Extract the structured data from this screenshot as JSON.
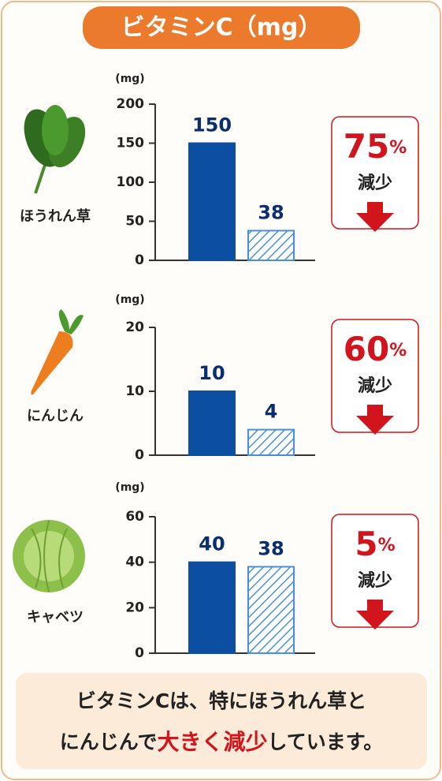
{
  "header": {
    "title": "ビタミンC（mg）"
  },
  "chart_data": [
    {
      "type": "bar",
      "name": "ほうれん草",
      "y_unit": "(mg)",
      "categories": [
        null,
        null
      ],
      "values": [
        150,
        38
      ],
      "colors": [
        "#0b4ea2",
        "#4a90d9"
      ],
      "hatched": [
        false,
        true
      ],
      "ylim": [
        0,
        200
      ],
      "yticks": [
        0,
        50,
        100,
        150,
        200
      ],
      "badge": {
        "value": 75,
        "unit": "%",
        "label": "減少"
      }
    },
    {
      "type": "bar",
      "name": "にんじん",
      "y_unit": "(mg)",
      "categories": [
        null,
        null
      ],
      "values": [
        10,
        4
      ],
      "colors": [
        "#0b4ea2",
        "#4a90d9"
      ],
      "hatched": [
        false,
        true
      ],
      "ylim": [
        0,
        20
      ],
      "yticks": [
        0,
        10,
        20
      ],
      "badge": {
        "value": 60,
        "unit": "%",
        "label": "減少"
      }
    },
    {
      "type": "bar",
      "name": "キャベツ",
      "y_unit": "(mg)",
      "categories": [
        null,
        null
      ],
      "values": [
        40,
        38
      ],
      "colors": [
        "#0b4ea2",
        "#4a90d9"
      ],
      "hatched": [
        false,
        true
      ],
      "ylim": [
        0,
        60
      ],
      "yticks": [
        0,
        20,
        40,
        60
      ],
      "badge": {
        "value": 5,
        "unit": "%",
        "label": "減少"
      }
    }
  ],
  "footer": {
    "line1": "ビタミンCは、特にほうれん草と",
    "line2_start": "にんじんで",
    "line2_emphasis": "大きく減少",
    "line2_end": "しています。"
  }
}
